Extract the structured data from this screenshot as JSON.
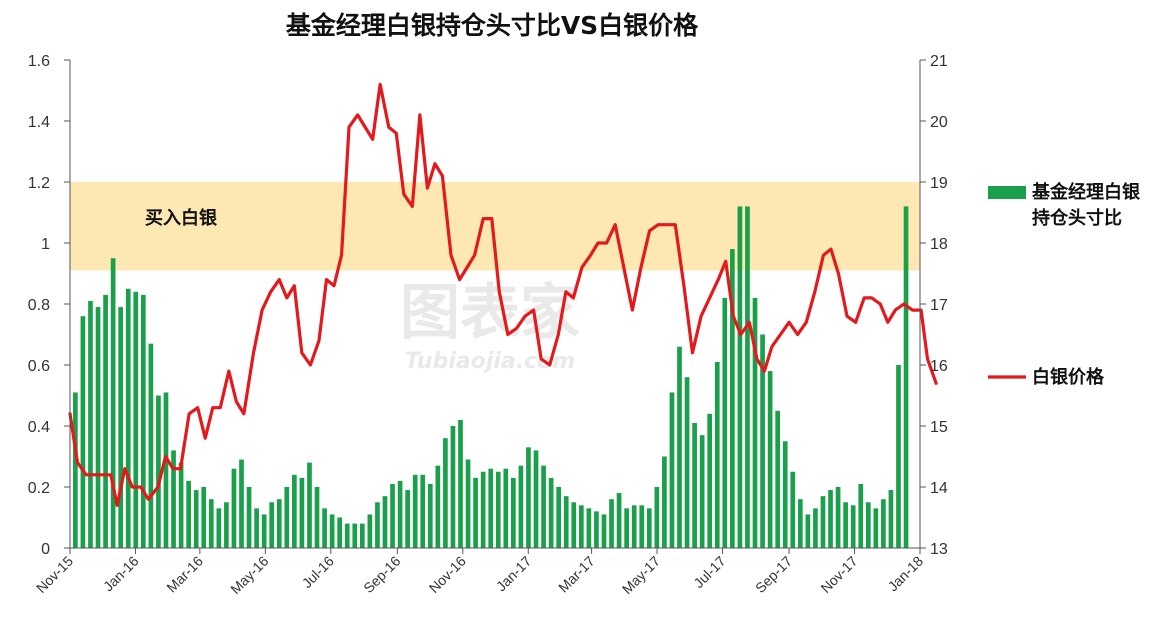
{
  "chart_data": {
    "type": "bar+line",
    "title": "基金经理白银持仓头寸比VS白银价格",
    "x_range": [
      "2015-11-01",
      "2018-01-01"
    ],
    "x_tick_labels": [
      "Nov-15",
      "Jan-16",
      "Mar-16",
      "May-16",
      "Jul-16",
      "Sep-16",
      "Nov-16",
      "Jan-17",
      "Mar-17",
      "May-17",
      "Jul-17",
      "Sep-17",
      "Nov-17",
      "Jan-18"
    ],
    "y_left": {
      "min": 0,
      "max": 1.6,
      "ticks": [
        "0",
        "0.2",
        "0.4",
        "0.6",
        "0.8",
        "1",
        "1.2",
        "1.4",
        "1.6"
      ]
    },
    "y_right": {
      "min": 13,
      "max": 21,
      "ticks": [
        "13",
        "14",
        "15",
        "16",
        "17",
        "18",
        "19",
        "20",
        "21"
      ]
    },
    "grid": false,
    "legend_position": "right",
    "band": {
      "label": "买入白银",
      "y_from": 0.91,
      "y_to": 1.2,
      "color": "#fde7b2"
    },
    "series": [
      {
        "name": "基金经理白银持仓头寸比",
        "type": "bar",
        "axis": "left",
        "color": "#1a9f4a",
        "values": [
          0.51,
          0.76,
          0.81,
          0.79,
          0.83,
          0.95,
          0.79,
          0.85,
          0.84,
          0.83,
          0.67,
          0.5,
          0.51,
          0.32,
          0.28,
          0.22,
          0.19,
          0.2,
          0.16,
          0.13,
          0.15,
          0.26,
          0.29,
          0.2,
          0.13,
          0.11,
          0.15,
          0.16,
          0.2,
          0.24,
          0.23,
          0.28,
          0.2,
          0.13,
          0.11,
          0.1,
          0.08,
          0.08,
          0.08,
          0.11,
          0.15,
          0.17,
          0.21,
          0.22,
          0.19,
          0.24,
          0.24,
          0.21,
          0.27,
          0.36,
          0.4,
          0.42,
          0.29,
          0.23,
          0.25,
          0.26,
          0.25,
          0.26,
          0.23,
          0.27,
          0.33,
          0.32,
          0.27,
          0.23,
          0.2,
          0.17,
          0.15,
          0.14,
          0.13,
          0.12,
          0.11,
          0.16,
          0.18,
          0.13,
          0.14,
          0.14,
          0.13,
          0.2,
          0.3,
          0.51,
          0.66,
          0.56,
          0.41,
          0.37,
          0.44,
          0.61,
          0.82,
          0.98,
          1.12,
          1.12,
          0.82,
          0.7,
          0.58,
          0.45,
          0.35,
          0.25,
          0.16,
          0.11,
          0.13,
          0.17,
          0.19,
          0.2,
          0.15,
          0.14,
          0.21,
          0.15,
          0.13,
          0.16,
          0.19,
          0.6,
          1.12
        ],
        "bar_x_start": "2015-11-06",
        "bar_x_end": "2017-12-19"
      },
      {
        "name": "白银价格",
        "type": "line",
        "axis": "right",
        "color": "#e3191c",
        "points": [
          [
            "2015-11-01",
            15.2
          ],
          [
            "2015-11-08",
            14.4
          ],
          [
            "2015-11-16",
            14.2
          ],
          [
            "2015-11-24",
            14.2
          ],
          [
            "2015-12-03",
            14.2
          ],
          [
            "2015-12-09",
            14.2
          ],
          [
            "2015-12-15",
            13.7
          ],
          [
            "2015-12-22",
            14.3
          ],
          [
            "2015-12-29",
            14.0
          ],
          [
            "2016-01-06",
            14.0
          ],
          [
            "2016-01-13",
            13.8
          ],
          [
            "2016-01-22",
            14.0
          ],
          [
            "2016-01-29",
            14.5
          ],
          [
            "2016-02-05",
            14.3
          ],
          [
            "2016-02-12",
            14.3
          ],
          [
            "2016-02-20",
            15.2
          ],
          [
            "2016-02-28",
            15.3
          ],
          [
            "2016-03-06",
            14.8
          ],
          [
            "2016-03-13",
            15.3
          ],
          [
            "2016-03-20",
            15.3
          ],
          [
            "2016-03-28",
            15.9
          ],
          [
            "2016-04-04",
            15.4
          ],
          [
            "2016-04-11",
            15.2
          ],
          [
            "2016-04-20",
            16.2
          ],
          [
            "2016-04-28",
            16.9
          ],
          [
            "2016-05-06",
            17.2
          ],
          [
            "2016-05-14",
            17.4
          ],
          [
            "2016-05-21",
            17.1
          ],
          [
            "2016-05-28",
            17.3
          ],
          [
            "2016-06-04",
            16.2
          ],
          [
            "2016-06-12",
            16.0
          ],
          [
            "2016-06-20",
            16.4
          ],
          [
            "2016-06-27",
            17.4
          ],
          [
            "2016-07-04",
            17.3
          ],
          [
            "2016-07-11",
            17.8
          ],
          [
            "2016-07-18",
            19.9
          ],
          [
            "2016-07-26",
            20.1
          ],
          [
            "2016-08-02",
            19.9
          ],
          [
            "2016-08-09",
            19.7
          ],
          [
            "2016-08-16",
            20.6
          ],
          [
            "2016-08-24",
            19.9
          ],
          [
            "2016-08-31",
            19.8
          ],
          [
            "2016-09-07",
            18.8
          ],
          [
            "2016-09-15",
            18.6
          ],
          [
            "2016-09-22",
            20.1
          ],
          [
            "2016-09-29",
            18.9
          ],
          [
            "2016-10-06",
            19.3
          ],
          [
            "2016-10-13",
            19.1
          ],
          [
            "2016-10-21",
            17.8
          ],
          [
            "2016-10-29",
            17.4
          ],
          [
            "2016-11-05",
            17.6
          ],
          [
            "2016-11-12",
            17.8
          ],
          [
            "2016-11-20",
            18.4
          ],
          [
            "2016-11-28",
            18.4
          ],
          [
            "2016-12-05",
            17.2
          ],
          [
            "2016-12-13",
            16.5
          ],
          [
            "2016-12-21",
            16.6
          ],
          [
            "2016-12-29",
            16.8
          ],
          [
            "2017-01-06",
            16.9
          ],
          [
            "2017-01-13",
            16.1
          ],
          [
            "2017-01-21",
            16.0
          ],
          [
            "2017-01-29",
            16.5
          ],
          [
            "2017-02-05",
            17.2
          ],
          [
            "2017-02-12",
            17.1
          ],
          [
            "2017-02-20",
            17.6
          ],
          [
            "2017-02-28",
            17.8
          ],
          [
            "2017-03-07",
            18.0
          ],
          [
            "2017-03-15",
            18.0
          ],
          [
            "2017-03-23",
            18.3
          ],
          [
            "2017-03-31",
            17.6
          ],
          [
            "2017-04-08",
            16.9
          ],
          [
            "2017-04-16",
            17.6
          ],
          [
            "2017-04-24",
            18.2
          ],
          [
            "2017-05-02",
            18.3
          ],
          [
            "2017-05-10",
            18.3
          ],
          [
            "2017-05-18",
            18.3
          ],
          [
            "2017-05-26",
            17.3
          ],
          [
            "2017-06-03",
            16.2
          ],
          [
            "2017-06-11",
            16.8
          ],
          [
            "2017-06-19",
            17.1
          ],
          [
            "2017-06-27",
            17.4
          ],
          [
            "2017-07-04",
            17.7
          ],
          [
            "2017-07-11",
            16.8
          ],
          [
            "2017-07-18",
            16.5
          ],
          [
            "2017-07-26",
            16.7
          ],
          [
            "2017-08-02",
            16.1
          ],
          [
            "2017-08-09",
            15.9
          ],
          [
            "2017-08-16",
            16.3
          ],
          [
            "2017-08-24",
            16.5
          ],
          [
            "2017-09-01",
            16.7
          ],
          [
            "2017-09-09",
            16.5
          ],
          [
            "2017-09-17",
            16.7
          ],
          [
            "2017-09-25",
            17.2
          ],
          [
            "2017-10-03",
            17.8
          ],
          [
            "2017-10-10",
            17.9
          ],
          [
            "2017-10-17",
            17.5
          ],
          [
            "2017-10-25",
            16.8
          ],
          [
            "2017-11-02",
            16.7
          ],
          [
            "2017-11-10",
            17.1
          ],
          [
            "2017-11-17",
            17.1
          ],
          [
            "2017-11-25",
            17.0
          ],
          [
            "2017-12-02",
            16.7
          ],
          [
            "2017-12-09",
            16.9
          ],
          [
            "2017-12-17",
            17.0
          ],
          [
            "2017-12-25",
            16.9
          ],
          [
            "2018-01-02",
            16.9
          ],
          [
            "2018-01-08",
            16.1
          ],
          [
            "2018-01-16",
            15.7
          ]
        ]
      }
    ],
    "legend": [
      {
        "label": "基金经理白银持仓头寸比",
        "type": "bar",
        "color": "#1a9f4a"
      },
      {
        "label": "白银价格",
        "type": "line",
        "color": "#e3191c"
      }
    ]
  },
  "watermark": {
    "main": "图表家",
    "sub": "Tubiaojia.com"
  }
}
